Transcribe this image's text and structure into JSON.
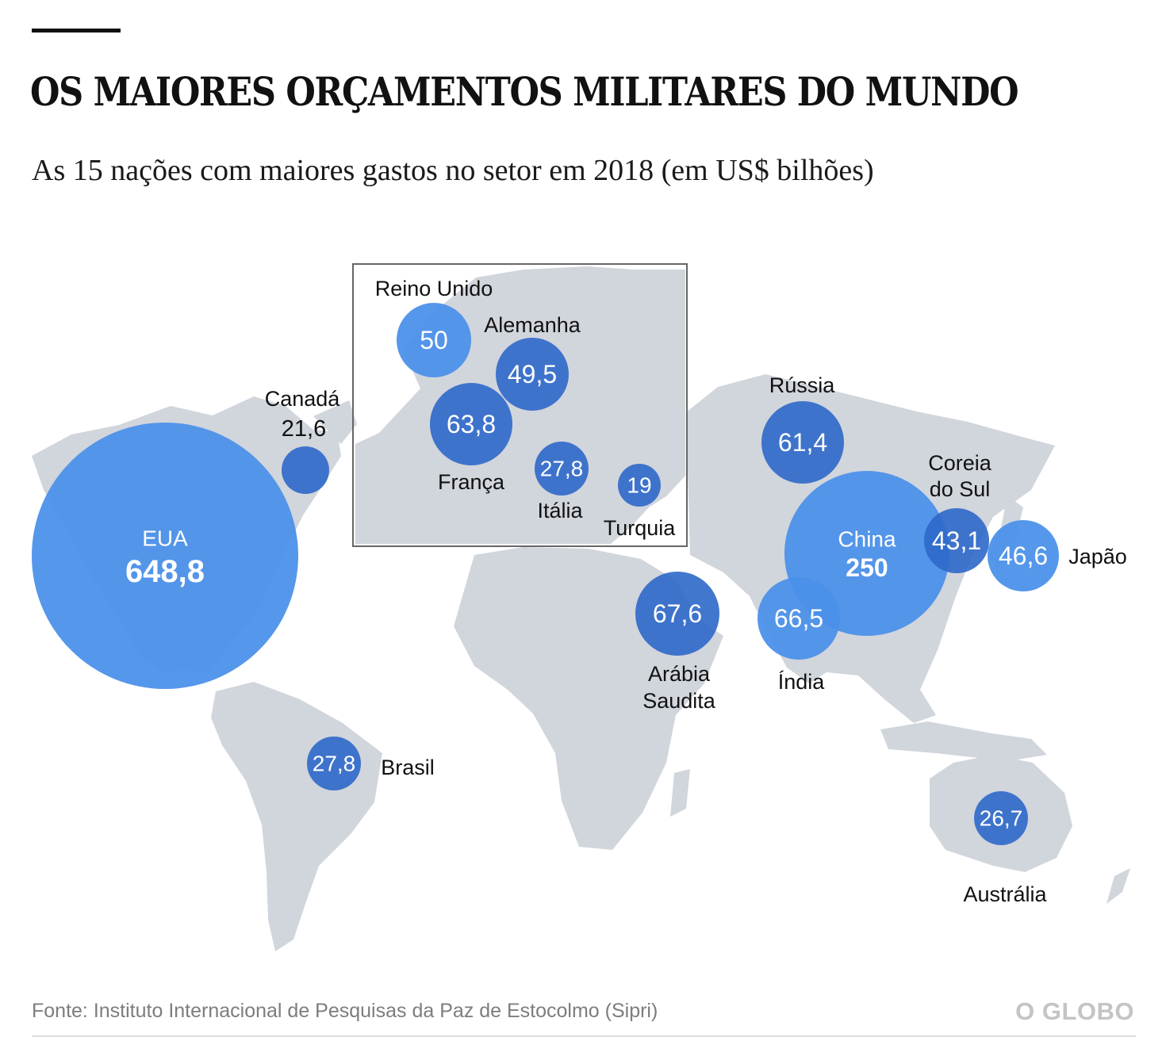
{
  "header": {
    "title": "OS MAIORES ORÇAMENTOS MILITARES DO MUNDO",
    "subtitle": "As 15 nações com maiores gastos no setor em 2018 (em US$ bilhões)"
  },
  "footer": {
    "source": "Fonte: Instituto Internacional de Pesquisas da Paz de Estocolmo (Sipri)",
    "logo_text": "O GLOBO"
  },
  "colors": {
    "land": "#d1d5dc",
    "bubble_light": "#4a90ea",
    "bubble_dark": "#2e68c9",
    "inset_border": "#666666"
  },
  "chart_data": {
    "type": "bubble-map",
    "unit": "US$ bilhões",
    "year": 2018,
    "countries": [
      {
        "name": "EUA",
        "value": "648,8",
        "amount": 648.8
      },
      {
        "name": "China",
        "value": "250",
        "amount": 250
      },
      {
        "name": "Arábia Saudita",
        "value": "67,6",
        "amount": 67.6
      },
      {
        "name": "Índia",
        "value": "66,5",
        "amount": 66.5
      },
      {
        "name": "França",
        "value": "63,8",
        "amount": 63.8
      },
      {
        "name": "Rússia",
        "value": "61,4",
        "amount": 61.4
      },
      {
        "name": "Reino Unido",
        "value": "50",
        "amount": 50
      },
      {
        "name": "Alemanha",
        "value": "49,5",
        "amount": 49.5
      },
      {
        "name": "Japão",
        "value": "46,6",
        "amount": 46.6
      },
      {
        "name": "Coreia do Sul",
        "value": "43,1",
        "amount": 43.1
      },
      {
        "name": "Itália",
        "value": "27,8",
        "amount": 27.8
      },
      {
        "name": "Brasil",
        "value": "27,8",
        "amount": 27.8
      },
      {
        "name": "Austrália",
        "value": "26,7",
        "amount": 26.7
      },
      {
        "name": "Canadá",
        "value": "21,6",
        "amount": 21.6
      },
      {
        "name": "Turquia",
        "value": "19",
        "amount": 19
      }
    ]
  }
}
